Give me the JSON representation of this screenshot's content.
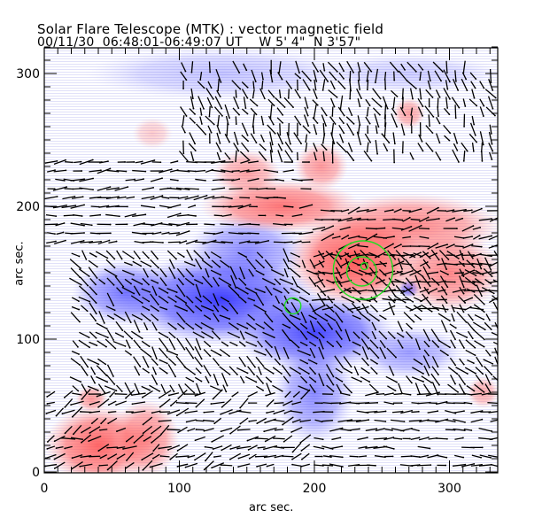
{
  "header": {
    "title": "Solar Flare Telescope (MTK) : vector magnetic field",
    "subtitle": "00/11/30  06:48:01-06:49:07 UT    W 5' 4\"  N 3'57\""
  },
  "chart_data": {
    "type": "heatmap",
    "title": "Solar Flare Telescope (MTK) : vector magnetic field",
    "subtitle": "00/11/30  06:48:01-06:49:07 UT    W 5' 4\"  N 3'57\"",
    "xlabel": "arc sec.",
    "ylabel": "arc sec.",
    "xlim": [
      0,
      336
    ],
    "ylim": [
      0,
      320
    ],
    "x_ticks": [
      0,
      100,
      200,
      300
    ],
    "y_ticks": [
      0,
      100,
      200,
      300
    ],
    "x_tick_labels": [
      "0",
      "100",
      "200",
      "300"
    ],
    "y_tick_labels": [
      "0",
      "100",
      "200",
      "300"
    ],
    "colors": {
      "positive": "#ff5a5a",
      "negative": "#4a4aff",
      "contour": "#22dd22",
      "vector": "#000000"
    },
    "positive_regions": [
      {
        "x": 40,
        "y": 20,
        "rx": 40,
        "ry": 30,
        "s": 0.9
      },
      {
        "x": 75,
        "y": 25,
        "rx": 25,
        "ry": 30,
        "s": 0.7
      },
      {
        "x": 35,
        "y": 55,
        "rx": 12,
        "ry": 10,
        "s": 0.6
      },
      {
        "x": 230,
        "y": 160,
        "rx": 50,
        "ry": 35,
        "s": 1.0
      },
      {
        "x": 175,
        "y": 200,
        "rx": 60,
        "ry": 20,
        "s": 0.8
      },
      {
        "x": 270,
        "y": 185,
        "rx": 70,
        "ry": 25,
        "s": 0.7
      },
      {
        "x": 300,
        "y": 150,
        "rx": 40,
        "ry": 30,
        "s": 0.7
      },
      {
        "x": 150,
        "y": 225,
        "rx": 25,
        "ry": 18,
        "s": 0.55
      },
      {
        "x": 205,
        "y": 230,
        "rx": 20,
        "ry": 18,
        "s": 0.6
      },
      {
        "x": 270,
        "y": 270,
        "rx": 12,
        "ry": 12,
        "s": 0.55
      },
      {
        "x": 80,
        "y": 255,
        "rx": 15,
        "ry": 12,
        "s": 0.3
      },
      {
        "x": 325,
        "y": 60,
        "rx": 12,
        "ry": 12,
        "s": 0.5
      }
    ],
    "negative_regions": [
      {
        "x": 130,
        "y": 130,
        "rx": 75,
        "ry": 35,
        "s": 1.0
      },
      {
        "x": 200,
        "y": 105,
        "rx": 60,
        "ry": 30,
        "s": 0.95
      },
      {
        "x": 60,
        "y": 135,
        "rx": 40,
        "ry": 25,
        "s": 0.7
      },
      {
        "x": 150,
        "y": 165,
        "rx": 45,
        "ry": 30,
        "s": 0.6
      },
      {
        "x": 200,
        "y": 60,
        "rx": 30,
        "ry": 40,
        "s": 0.6
      },
      {
        "x": 270,
        "y": 90,
        "rx": 40,
        "ry": 20,
        "s": 0.5
      },
      {
        "x": 270,
        "y": 138,
        "rx": 8,
        "ry": 7,
        "s": 0.8
      },
      {
        "x": 130,
        "y": 300,
        "rx": 100,
        "ry": 20,
        "s": 0.3
      },
      {
        "x": 270,
        "y": 300,
        "rx": 70,
        "ry": 15,
        "s": 0.25
      }
    ],
    "contours": [
      {
        "x": 236,
        "y": 152,
        "r": 22
      },
      {
        "x": 235,
        "y": 151,
        "r": 11
      },
      {
        "x": 237,
        "y": 155,
        "r": 2.6
      },
      {
        "x": 184,
        "y": 125,
        "r": 6
      }
    ],
    "vector_regions": [
      {
        "x0": 2,
        "x1": 200,
        "y0": 2,
        "y1": 60,
        "angle": 20,
        "spread": 30
      },
      {
        "x0": 200,
        "x1": 336,
        "y0": 2,
        "y1": 60,
        "angle": 180,
        "spread": 15
      },
      {
        "x0": 20,
        "x1": 336,
        "y0": 60,
        "y1": 170,
        "angle": 135,
        "spread": 25
      },
      {
        "x0": 200,
        "x1": 336,
        "y0": 120,
        "y1": 200,
        "angle": 190,
        "spread": 20
      },
      {
        "x0": 2,
        "x1": 200,
        "y0": 170,
        "y1": 235,
        "angle": 185,
        "spread": 15
      },
      {
        "x0": 100,
        "x1": 336,
        "y0": 235,
        "y1": 310,
        "angle": 110,
        "spread": 30
      }
    ]
  }
}
